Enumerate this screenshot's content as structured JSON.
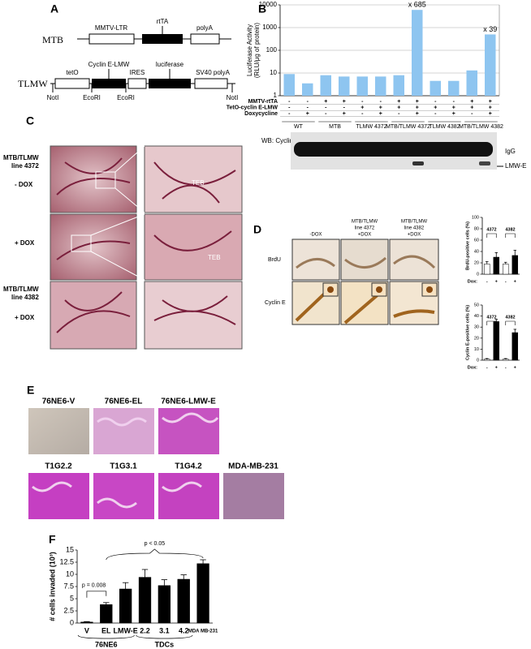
{
  "panel_labels": [
    "A",
    "B",
    "C",
    "D",
    "E",
    "F"
  ],
  "panel_a": {
    "rows": [
      {
        "name": "MTB",
        "elements": [
          "MMTV-LTR",
          "rtTA",
          "polyA"
        ]
      },
      {
        "name": "TLMW",
        "elements": [
          "tetO",
          "Cyclin E-LMW",
          "IRES",
          "luciferase",
          "SV40 polyA"
        ],
        "sites": [
          "NotI",
          "EcoRI",
          "EcoRI",
          "NotI"
        ]
      }
    ]
  },
  "panel_b_blot": {
    "title": "WB: Cyclin E",
    "bands": [
      "IgG",
      "LMW-E"
    ]
  },
  "panel_c": {
    "rows": [
      {
        "line": [
          "MTB/TLMW",
          "line 4372"
        ],
        "condition": "- DOX"
      },
      {
        "condition": "+ DOX"
      },
      {
        "line": [
          "MTB/TLMW",
          "line 4382"
        ],
        "condition": "+ DOX"
      }
    ],
    "annotations": [
      "TEB",
      "TEB"
    ]
  },
  "panel_d_images": {
    "columns": [
      [
        "-DOX"
      ],
      [
        "MTB/TLMW",
        "line 4372",
        "+DOX"
      ],
      [
        "MTB/TLMW",
        "line 4382",
        "+DOX"
      ]
    ],
    "rows": [
      "BrdU",
      "Cyclin E"
    ]
  },
  "panel_e": {
    "images": [
      "76NE6-V",
      "76NE6-EL",
      "76NE6-LMW-E",
      "T1G2.2",
      "T1G3.1",
      "T1G4.2",
      "MDA-MB-231"
    ]
  },
  "chart_data": [
    {
      "type": "bar",
      "y_label": [
        "Luciferase Activity",
        "(RLU/μg of protein)"
      ],
      "log_scale": true,
      "ylim": [
        1,
        10000
      ],
      "yticks": [
        1,
        10,
        100,
        1000,
        10000
      ],
      "grid": true,
      "color": "#8ec5f0",
      "categories": [
        null,
        null,
        null,
        null,
        null,
        null,
        null,
        null,
        null,
        null,
        null,
        null
      ],
      "values": [
        9,
        3.5,
        8,
        7,
        7,
        7,
        8,
        6000,
        4.5,
        4.5,
        13,
        500
      ],
      "annotations": [
        null,
        null,
        null,
        null,
        null,
        null,
        null,
        "x 685",
        null,
        null,
        null,
        "x 39"
      ],
      "rows": [
        {
          "name": "MMTV-rtTA",
          "values": [
            "-",
            "-",
            "+",
            "+",
            "-",
            "-",
            "+",
            "+",
            "-",
            "-",
            "+",
            "+"
          ]
        },
        {
          "name": "TetO-cyclin E-LMW",
          "values": [
            "-",
            "-",
            "-",
            "-",
            "+",
            "+",
            "+",
            "+",
            "+",
            "+",
            "+",
            "+"
          ]
        },
        {
          "name": "Doxycycline",
          "values": [
            "-",
            "+",
            "-",
            "+",
            "-",
            "+",
            "-",
            "+",
            "-",
            "+",
            "-",
            "+"
          ]
        }
      ],
      "groups": [
        "WT",
        "MTB",
        "TLMW 4372",
        "MTB/TLMW 4372",
        "TLMW 4382",
        "MTB/TLMW 4382"
      ]
    },
    {
      "type": "bar",
      "y_label": "BrdU-positive cells (%)",
      "ylim": [
        0,
        100
      ],
      "yticks": [
        0,
        20,
        40,
        60,
        80,
        100
      ],
      "grid": false,
      "categories": [
        "-",
        "+",
        "-",
        "+"
      ],
      "row_label": "Dox:",
      "groups": [
        "4372",
        "4382"
      ],
      "values": [
        18,
        30,
        18,
        33
      ],
      "errors": [
        4,
        8,
        3,
        9
      ],
      "colors": [
        "#ffffff",
        "#000000",
        "#ffffff",
        "#000000"
      ]
    },
    {
      "type": "bar",
      "y_label": "Cyclin E-positive cells (%)",
      "ylim": [
        0,
        50
      ],
      "yticks": [
        0,
        10,
        20,
        30,
        40,
        50
      ],
      "grid": false,
      "categories": [
        "-",
        "+",
        "-",
        "+"
      ],
      "row_label": "Dox:",
      "groups": [
        "4372",
        "4382"
      ],
      "values": [
        1,
        35,
        1,
        25
      ],
      "errors": [
        0.5,
        2,
        0.5,
        3
      ],
      "colors": [
        "#ffffff",
        "#000000",
        "#ffffff",
        "#000000"
      ]
    },
    {
      "type": "bar",
      "y_label": "# cells invaded (10³)",
      "ylim": [
        0,
        15
      ],
      "yticks": [
        0,
        2.5,
        5,
        7.5,
        10,
        12.5,
        15
      ],
      "grid": false,
      "categories": [
        "V",
        "EL",
        "LMW-E",
        "2.2",
        "3.1",
        "4.2",
        "MDA MB-231"
      ],
      "color": "#000000",
      "values": [
        0.2,
        3.8,
        7,
        9.4,
        7.7,
        9,
        12.2
      ],
      "errors": [
        0.1,
        0.4,
        1.3,
        1.6,
        1.2,
        0.9,
        0.8
      ],
      "groups": [
        "76NE6",
        "TDCs"
      ],
      "annotations": [
        "p = 0.008",
        "p < 0.05"
      ]
    }
  ]
}
